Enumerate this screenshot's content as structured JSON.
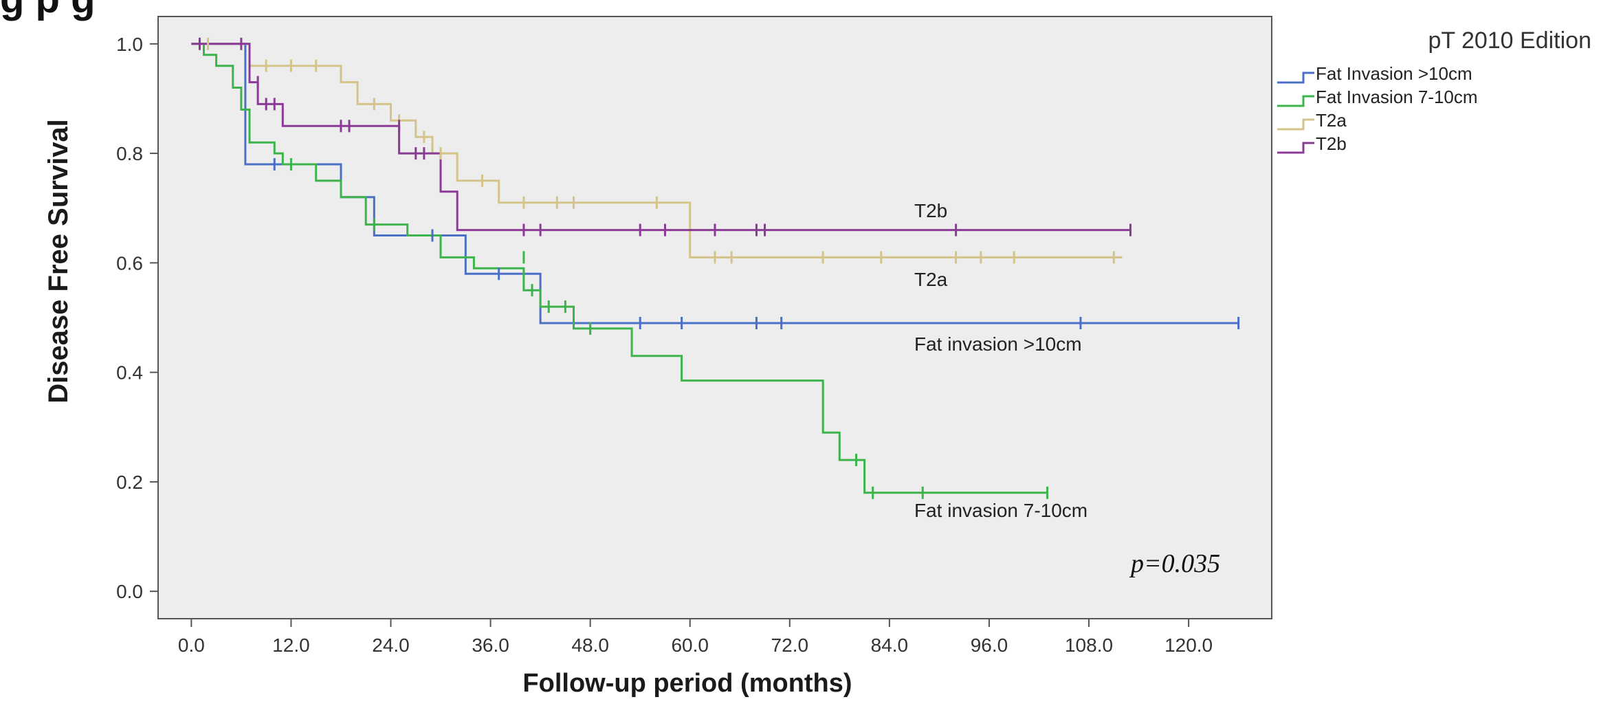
{
  "header_fragment": "g    p g",
  "chart_data": {
    "type": "line",
    "step": true,
    "xlabel": "Follow-up period (months)",
    "ylabel": "Disease Free Survival",
    "xlim": [
      -4,
      130
    ],
    "ylim": [
      -0.05,
      1.05
    ],
    "xticks": [
      "0.0",
      "12.0",
      "24.0",
      "36.0",
      "48.0",
      "60.0",
      "72.0",
      "84.0",
      "96.0",
      "108.0",
      "120.0"
    ],
    "yticks": [
      "0.0",
      "0.2",
      "0.4",
      "0.6",
      "0.8",
      "1.0"
    ],
    "legend_title": "pT 2010 Edition",
    "legend_position": "outside-right",
    "annotation": "p=0.035",
    "background": "#ededed",
    "series": [
      {
        "name": "Fat Invasion >10cm",
        "label": "Fat invasion >10cm",
        "color": "#4a6fc7",
        "points": [
          [
            0,
            1.0
          ],
          [
            6.5,
            1.0
          ],
          [
            6.5,
            0.78
          ],
          [
            18,
            0.78
          ],
          [
            18,
            0.72
          ],
          [
            22,
            0.72
          ],
          [
            22,
            0.65
          ],
          [
            33,
            0.65
          ],
          [
            33,
            0.58
          ],
          [
            42,
            0.58
          ],
          [
            42,
            0.49
          ],
          [
            126,
            0.49
          ]
        ],
        "censored": [
          [
            10,
            0.78
          ],
          [
            29,
            0.65
          ],
          [
            37,
            0.58
          ],
          [
            54,
            0.49
          ],
          [
            59,
            0.49
          ],
          [
            68,
            0.49
          ],
          [
            71,
            0.49
          ],
          [
            107,
            0.49
          ],
          [
            126,
            0.49
          ]
        ]
      },
      {
        "name": "Fat Invasion 7-10cm",
        "label": "Fat invasion 7-10cm",
        "color": "#3cb44b",
        "points": [
          [
            0,
            1.0
          ],
          [
            1.5,
            1.0
          ],
          [
            1.5,
            0.98
          ],
          [
            3,
            0.98
          ],
          [
            3,
            0.96
          ],
          [
            5,
            0.96
          ],
          [
            5,
            0.92
          ],
          [
            6,
            0.92
          ],
          [
            6,
            0.88
          ],
          [
            7,
            0.88
          ],
          [
            7,
            0.82
          ],
          [
            10,
            0.82
          ],
          [
            10,
            0.8
          ],
          [
            11,
            0.8
          ],
          [
            11,
            0.78
          ],
          [
            15,
            0.78
          ],
          [
            15,
            0.75
          ],
          [
            18,
            0.75
          ],
          [
            18,
            0.72
          ],
          [
            21,
            0.72
          ],
          [
            21,
            0.67
          ],
          [
            26,
            0.67
          ],
          [
            26,
            0.65
          ],
          [
            30,
            0.65
          ],
          [
            30,
            0.61
          ],
          [
            34,
            0.61
          ],
          [
            34,
            0.59
          ],
          [
            40,
            0.59
          ],
          [
            40,
            0.55
          ],
          [
            42,
            0.55
          ],
          [
            42,
            0.52
          ],
          [
            46,
            0.52
          ],
          [
            46,
            0.48
          ],
          [
            53,
            0.48
          ],
          [
            53,
            0.43
          ],
          [
            59,
            0.43
          ],
          [
            59,
            0.385
          ],
          [
            76,
            0.385
          ],
          [
            76,
            0.29
          ],
          [
            78,
            0.29
          ],
          [
            78,
            0.24
          ],
          [
            81,
            0.24
          ],
          [
            81,
            0.18
          ],
          [
            103,
            0.18
          ]
        ],
        "censored": [
          [
            12,
            0.78
          ],
          [
            22,
            0.67
          ],
          [
            40,
            0.61
          ],
          [
            41,
            0.55
          ],
          [
            43,
            0.52
          ],
          [
            45,
            0.52
          ],
          [
            48,
            0.48
          ],
          [
            80,
            0.24
          ],
          [
            82,
            0.18
          ],
          [
            88,
            0.18
          ],
          [
            103,
            0.18
          ]
        ]
      },
      {
        "name": "T2a",
        "label": "T2a",
        "color": "#d4c48a",
        "points": [
          [
            0,
            1.0
          ],
          [
            7,
            1.0
          ],
          [
            7,
            0.96
          ],
          [
            18,
            0.96
          ],
          [
            18,
            0.93
          ],
          [
            20,
            0.93
          ],
          [
            20,
            0.89
          ],
          [
            24,
            0.89
          ],
          [
            24,
            0.86
          ],
          [
            27,
            0.86
          ],
          [
            27,
            0.83
          ],
          [
            29,
            0.83
          ],
          [
            29,
            0.8
          ],
          [
            32,
            0.8
          ],
          [
            32,
            0.75
          ],
          [
            37,
            0.75
          ],
          [
            37,
            0.71
          ],
          [
            60,
            0.71
          ],
          [
            60,
            0.61
          ],
          [
            112,
            0.61
          ]
        ],
        "censored": [
          [
            2,
            1.0
          ],
          [
            9,
            0.96
          ],
          [
            12,
            0.96
          ],
          [
            15,
            0.96
          ],
          [
            22,
            0.89
          ],
          [
            25,
            0.86
          ],
          [
            28,
            0.83
          ],
          [
            30,
            0.8
          ],
          [
            35,
            0.75
          ],
          [
            40,
            0.71
          ],
          [
            44,
            0.71
          ],
          [
            46,
            0.71
          ],
          [
            56,
            0.71
          ],
          [
            63,
            0.61
          ],
          [
            65,
            0.61
          ],
          [
            76,
            0.61
          ],
          [
            83,
            0.61
          ],
          [
            92,
            0.61
          ],
          [
            95,
            0.61
          ],
          [
            99,
            0.61
          ],
          [
            111,
            0.61
          ]
        ]
      },
      {
        "name": "T2b",
        "label": "T2b",
        "color": "#8b3a96",
        "points": [
          [
            0,
            1.0
          ],
          [
            7,
            1.0
          ],
          [
            7,
            0.93
          ],
          [
            8,
            0.93
          ],
          [
            8,
            0.89
          ],
          [
            11,
            0.89
          ],
          [
            11,
            0.85
          ],
          [
            25,
            0.85
          ],
          [
            25,
            0.8
          ],
          [
            30,
            0.8
          ],
          [
            30,
            0.73
          ],
          [
            32,
            0.73
          ],
          [
            32,
            0.66
          ],
          [
            113,
            0.66
          ]
        ],
        "censored": [
          [
            1,
            1.0
          ],
          [
            6,
            1.0
          ],
          [
            8,
            0.93
          ],
          [
            9,
            0.89
          ],
          [
            10,
            0.89
          ],
          [
            18,
            0.85
          ],
          [
            19,
            0.85
          ],
          [
            25,
            0.85
          ],
          [
            27,
            0.8
          ],
          [
            28,
            0.8
          ],
          [
            40,
            0.66
          ],
          [
            42,
            0.66
          ],
          [
            54,
            0.66
          ],
          [
            57,
            0.66
          ],
          [
            63,
            0.66
          ],
          [
            68,
            0.66
          ],
          [
            69,
            0.66
          ],
          [
            92,
            0.66
          ],
          [
            113,
            0.66
          ]
        ]
      }
    ]
  }
}
